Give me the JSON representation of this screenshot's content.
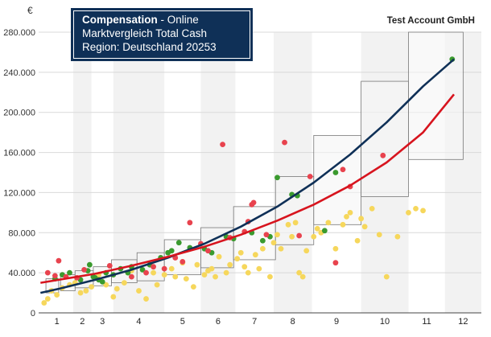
{
  "header": {
    "title_bold": "Compensation",
    "title_rest": "- Online",
    "line2": "Marktvergleich Total Cash",
    "line3": "Region: Deutschland 20253",
    "company": "Test Account GmbH"
  },
  "colors": {
    "line_blue": "#0f3057",
    "line_red": "#d7141e",
    "dot_green": "#3a9a2e",
    "dot_red": "#e8434e",
    "dot_yellow": "#f6d75c",
    "band": "#f2f2f2",
    "box_fill": "#f5f5f5"
  },
  "chart_data": {
    "type": "scatter",
    "title": "",
    "xlabel": "",
    "ylabel": "€",
    "xlim": [
      0.45,
      12.6
    ],
    "ylim": [
      0,
      280000
    ],
    "x_ticks": [
      1,
      2,
      3,
      4,
      5,
      6,
      7,
      8,
      9,
      10,
      11,
      12
    ],
    "y_ticks": [
      0,
      40000,
      80000,
      120000,
      160000,
      200000,
      240000,
      280000
    ],
    "y_tick_labels": [
      "0",
      "40.000",
      "80.000",
      "120.000",
      "160.000",
      "200.000",
      "240.000",
      "280.000"
    ],
    "grade_bands": [
      {
        "grade": 1,
        "from": 0.5,
        "to": 1.4
      },
      {
        "grade": 2,
        "from": 1.4,
        "to": 1.9
      },
      {
        "grade": 3,
        "from": 1.9,
        "to": 2.5
      },
      {
        "grade": 4,
        "from": 2.5,
        "to": 3.9
      },
      {
        "grade": 5,
        "from": 3.9,
        "to": 4.9
      },
      {
        "grade": 6,
        "from": 4.9,
        "to": 5.85
      },
      {
        "grade": 7,
        "from": 5.85,
        "to": 6.9
      },
      {
        "grade": 8,
        "from": 6.9,
        "to": 7.95
      },
      {
        "grade": 9,
        "from": 7.95,
        "to": 9.3
      },
      {
        "grade": 10,
        "from": 9.3,
        "to": 10.6
      },
      {
        "grade": 11,
        "from": 10.6,
        "to": 11.6
      },
      {
        "grade": 12,
        "from": 11.6,
        "to": 12.6
      }
    ],
    "boxes": [
      {
        "x0": 0.65,
        "x1": 1.0,
        "low": 20000,
        "high": 34000
      },
      {
        "x0": 1.05,
        "x1": 1.45,
        "low": 22000,
        "high": 38000
      },
      {
        "x0": 1.45,
        "x1": 1.95,
        "low": 25000,
        "high": 42000
      },
      {
        "x0": 1.95,
        "x1": 2.45,
        "low": 27000,
        "high": 46000
      },
      {
        "x0": 2.45,
        "x1": 3.15,
        "low": 30000,
        "high": 53000
      },
      {
        "x0": 3.15,
        "x1": 3.9,
        "low": 32000,
        "high": 60000
      },
      {
        "x0": 3.9,
        "x1": 4.9,
        "low": 38000,
        "high": 73000
      },
      {
        "x0": 4.9,
        "x1": 5.8,
        "low": 45000,
        "high": 85000
      },
      {
        "x0": 5.8,
        "x1": 6.95,
        "low": 53000,
        "high": 106000
      },
      {
        "x0": 6.95,
        "x1": 8.0,
        "low": 68000,
        "high": 136000
      },
      {
        "x0": 8.0,
        "x1": 9.3,
        "low": 88000,
        "high": 177000
      },
      {
        "x0": 9.3,
        "x1": 10.6,
        "low": 116000,
        "high": 231000
      },
      {
        "x0": 10.6,
        "x1": 12.1,
        "low": 153000,
        "high": 280000
      }
    ],
    "series": [
      {
        "kind": "line",
        "color": "line_blue",
        "x": [
          0.5,
          1,
          2,
          3,
          4,
          5,
          6,
          7,
          8,
          9,
          10,
          11,
          11.85
        ],
        "y": [
          20000,
          24000,
          33000,
          43000,
          55000,
          69000,
          86000,
          106000,
          130000,
          158000,
          190000,
          226000,
          253000
        ]
      },
      {
        "kind": "line",
        "color": "line_red",
        "x": [
          0.5,
          1,
          2,
          3,
          4,
          5,
          6,
          7,
          8,
          9,
          10,
          11,
          11.85
        ],
        "y": [
          30000,
          33000,
          39000,
          47000,
          56000,
          66000,
          78000,
          92000,
          108000,
          127000,
          150000,
          180000,
          218000
        ]
      },
      {
        "kind": "points",
        "color": "dot_green",
        "points": [
          [
            0.9,
            34000
          ],
          [
            1.1,
            38000
          ],
          [
            1.3,
            40000
          ],
          [
            1.6,
            33000
          ],
          [
            1.8,
            42000
          ],
          [
            1.85,
            48000
          ],
          [
            2.0,
            35000
          ],
          [
            2.2,
            31000
          ],
          [
            2.3,
            40000
          ],
          [
            2.5,
            38000
          ],
          [
            2.7,
            44000
          ],
          [
            2.9,
            40000
          ],
          [
            3.0,
            46000
          ],
          [
            3.3,
            43000
          ],
          [
            3.5,
            48000
          ],
          [
            3.8,
            55000
          ],
          [
            4.0,
            60000
          ],
          [
            4.1,
            62000
          ],
          [
            4.3,
            70000
          ],
          [
            4.6,
            65000
          ],
          [
            5.0,
            64000
          ],
          [
            5.2,
            60000
          ],
          [
            5.6,
            76000
          ],
          [
            5.8,
            74000
          ],
          [
            6.3,
            80000
          ],
          [
            6.6,
            72000
          ],
          [
            6.8,
            76000
          ],
          [
            7.0,
            135000
          ],
          [
            7.4,
            118000
          ],
          [
            7.55,
            117000
          ],
          [
            8.3,
            82000
          ],
          [
            8.6,
            140000
          ],
          [
            11.8,
            253000
          ],
          [
            2.1,
            33000
          ],
          [
            1.95,
            36000
          ]
        ]
      },
      {
        "kind": "points",
        "color": "dot_red",
        "points": [
          [
            0.7,
            40000
          ],
          [
            0.9,
            37000
          ],
          [
            1.0,
            52000
          ],
          [
            1.2,
            36000
          ],
          [
            1.5,
            35000
          ],
          [
            1.7,
            43000
          ],
          [
            2.4,
            47000
          ],
          [
            3.0,
            36000
          ],
          [
            3.4,
            40000
          ],
          [
            3.6,
            46000
          ],
          [
            3.9,
            44000
          ],
          [
            4.2,
            55000
          ],
          [
            4.4,
            51000
          ],
          [
            4.6,
            90000
          ],
          [
            4.9,
            69000
          ],
          [
            5.1,
            62000
          ],
          [
            5.5,
            168000
          ],
          [
            5.7,
            75000
          ],
          [
            6.1,
            81000
          ],
          [
            6.2,
            91000
          ],
          [
            6.3,
            108000
          ],
          [
            6.35,
            110000
          ],
          [
            6.7,
            78000
          ],
          [
            7.2,
            170000
          ],
          [
            7.6,
            77000
          ],
          [
            7.9,
            136000
          ],
          [
            8.6,
            50000
          ],
          [
            8.8,
            143000
          ],
          [
            9.0,
            126000
          ],
          [
            9.9,
            157000
          ]
        ]
      },
      {
        "kind": "points",
        "color": "dot_yellow",
        "points": [
          [
            0.6,
            10000
          ],
          [
            0.7,
            14000
          ],
          [
            0.8,
            22000
          ],
          [
            0.95,
            18000
          ],
          [
            1.1,
            25000
          ],
          [
            1.3,
            28000
          ],
          [
            1.45,
            30000
          ],
          [
            1.6,
            20000
          ],
          [
            1.75,
            22000
          ],
          [
            1.9,
            26000
          ],
          [
            2.0,
            35000
          ],
          [
            2.1,
            38000
          ],
          [
            2.3,
            28000
          ],
          [
            2.5,
            16000
          ],
          [
            2.6,
            24000
          ],
          [
            2.8,
            30000
          ],
          [
            3.0,
            42000
          ],
          [
            3.2,
            22000
          ],
          [
            3.4,
            14000
          ],
          [
            3.6,
            40000
          ],
          [
            3.7,
            28000
          ],
          [
            3.9,
            38000
          ],
          [
            4.1,
            44000
          ],
          [
            4.2,
            36000
          ],
          [
            4.4,
            50000
          ],
          [
            4.5,
            34000
          ],
          [
            4.7,
            26000
          ],
          [
            4.8,
            48000
          ],
          [
            5.0,
            38000
          ],
          [
            5.1,
            42000
          ],
          [
            5.2,
            44000
          ],
          [
            5.3,
            36000
          ],
          [
            5.4,
            56000
          ],
          [
            5.6,
            40000
          ],
          [
            5.7,
            48000
          ],
          [
            5.9,
            54000
          ],
          [
            6.0,
            60000
          ],
          [
            6.1,
            46000
          ],
          [
            6.2,
            40000
          ],
          [
            6.4,
            58000
          ],
          [
            6.5,
            44000
          ],
          [
            6.6,
            64000
          ],
          [
            6.8,
            36000
          ],
          [
            6.9,
            70000
          ],
          [
            7.0,
            78000
          ],
          [
            7.1,
            64000
          ],
          [
            7.3,
            88000
          ],
          [
            7.4,
            76000
          ],
          [
            7.5,
            90000
          ],
          [
            7.6,
            40000
          ],
          [
            7.7,
            36000
          ],
          [
            7.8,
            62000
          ],
          [
            8.0,
            76000
          ],
          [
            8.1,
            84000
          ],
          [
            8.2,
            80000
          ],
          [
            8.4,
            90000
          ],
          [
            8.6,
            64000
          ],
          [
            8.8,
            88000
          ],
          [
            8.9,
            96000
          ],
          [
            9.0,
            100000
          ],
          [
            9.2,
            72000
          ],
          [
            9.3,
            94000
          ],
          [
            9.4,
            86000
          ],
          [
            9.6,
            104000
          ],
          [
            9.8,
            78000
          ],
          [
            10.0,
            36000
          ],
          [
            10.3,
            76000
          ],
          [
            10.6,
            100000
          ],
          [
            10.8,
            104000
          ],
          [
            11.0,
            102000
          ]
        ]
      }
    ]
  }
}
